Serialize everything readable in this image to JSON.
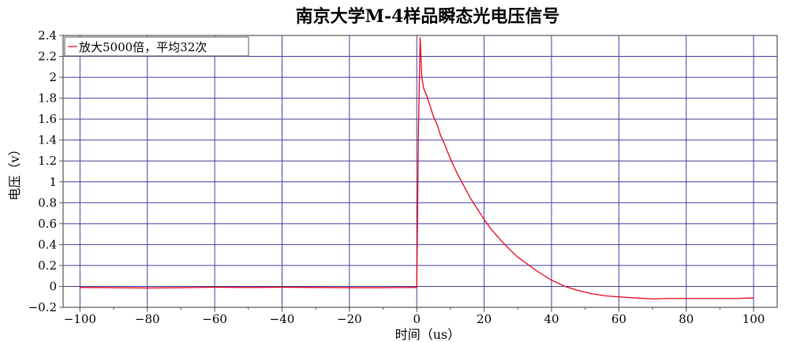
{
  "chart_data": {
    "type": "line",
    "title": "南京大学M-4样品瞬态光电压信号",
    "xlabel": "时间（us）",
    "ylabel": "电压（v）",
    "xlim": [
      -105,
      107
    ],
    "ylim": [
      -0.2,
      2.4
    ],
    "x_ticks": [
      -100,
      -80,
      -60,
      -40,
      -20,
      0,
      20,
      40,
      60,
      80,
      100
    ],
    "x_tick_labels": [
      "−100",
      "−80",
      "−60",
      "−40",
      "−20",
      "0",
      "20",
      "40",
      "60",
      "80",
      "100"
    ],
    "y_ticks": [
      -0.2,
      0,
      0.2,
      0.4,
      0.6,
      0.8,
      1,
      1.2,
      1.4,
      1.6,
      1.8,
      2,
      2.2,
      2.4
    ],
    "y_tick_labels": [
      "−0.2",
      "0",
      "0.2",
      "0.4",
      "0.6",
      "0.8",
      "1",
      "1.2",
      "1.4",
      "1.6",
      "1.8",
      "2",
      "2.2",
      "2.4"
    ],
    "grid": true,
    "legend_position": "top-left",
    "series": [
      {
        "name": "放大5000倍，平均32次",
        "color": "#e8001c",
        "x": [
          -100,
          -90,
          -80,
          -70,
          -60,
          -50,
          -40,
          -30,
          -20,
          -10,
          -1,
          0,
          0.5,
          1,
          1.5,
          2,
          3,
          4,
          5,
          6,
          7,
          8,
          10,
          12,
          14,
          16,
          18,
          20,
          22,
          25,
          28,
          30,
          33,
          36,
          40,
          44,
          48,
          52,
          56,
          60,
          65,
          70,
          75,
          80,
          85,
          90,
          95,
          100
        ],
        "values": [
          -0.01,
          -0.012,
          -0.015,
          -0.012,
          -0.008,
          -0.01,
          -0.008,
          -0.01,
          -0.012,
          -0.012,
          -0.01,
          -0.01,
          1.5,
          2.38,
          2.0,
          1.9,
          1.82,
          1.72,
          1.62,
          1.55,
          1.45,
          1.38,
          1.22,
          1.08,
          0.96,
          0.84,
          0.74,
          0.64,
          0.55,
          0.44,
          0.34,
          0.28,
          0.21,
          0.14,
          0.06,
          0.0,
          -0.04,
          -0.07,
          -0.09,
          -0.1,
          -0.11,
          -0.12,
          -0.115,
          -0.115,
          -0.115,
          -0.115,
          -0.115,
          -0.11
        ]
      }
    ]
  }
}
